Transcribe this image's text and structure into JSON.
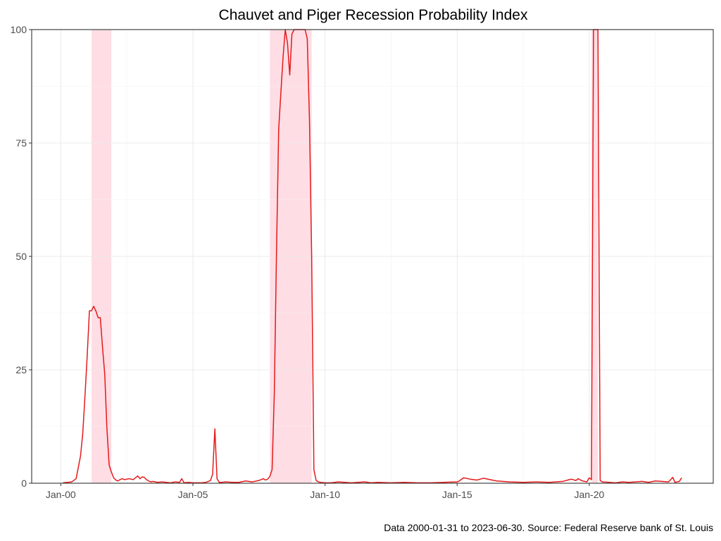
{
  "chart_data": {
    "type": "line",
    "title": "Chauvet and Piger Recession Probability Index",
    "caption": "Data 2000-01-31 to 2023-06-30.  Source: Federal Reserve bank of St. Louis",
    "xlabel": "",
    "ylabel": "",
    "x_range": [
      "2000-01-31",
      "2023-06-30"
    ],
    "ylim": [
      0,
      100
    ],
    "y_ticks": [
      0,
      25,
      50,
      75,
      100
    ],
    "x_ticks": [
      {
        "date": "2000-01-01",
        "label": "Jan-00"
      },
      {
        "date": "2005-01-01",
        "label": "Jan-05"
      },
      {
        "date": "2010-01-01",
        "label": "Jan-10"
      },
      {
        "date": "2015-01-01",
        "label": "Jan-15"
      },
      {
        "date": "2020-01-01",
        "label": "Jan-20"
      }
    ],
    "grid": true,
    "line_color": "#e41a1c",
    "recession_color": "#ffdde4",
    "recession_periods": [
      {
        "start": "2001-03-01",
        "end": "2001-11-30"
      },
      {
        "start": "2007-12-01",
        "end": "2009-06-30"
      },
      {
        "start": "2020-02-01",
        "end": "2020-04-30"
      }
    ],
    "series": [
      {
        "x": [
          "2000-01-31",
          "2000-03-31",
          "2000-05-31",
          "2000-07-31",
          "2000-09-30",
          "2000-10-31",
          "2000-11-30",
          "2000-12-31",
          "2001-01-31",
          "2001-02-28",
          "2001-03-31",
          "2001-04-30",
          "2001-05-31",
          "2001-06-30",
          "2001-07-31",
          "2001-08-31",
          "2001-09-30",
          "2001-10-31",
          "2001-11-30",
          "2001-12-31",
          "2002-01-31",
          "2002-02-28",
          "2002-03-31",
          "2002-04-30",
          "2002-05-31",
          "2002-07-31",
          "2002-09-30",
          "2002-11-30",
          "2002-12-31",
          "2003-01-31",
          "2003-02-28",
          "2003-03-31",
          "2003-04-30",
          "2003-05-31",
          "2003-06-30",
          "2003-08-31",
          "2003-10-31",
          "2003-12-31",
          "2004-02-29",
          "2004-04-30",
          "2004-06-30",
          "2004-07-31",
          "2004-08-31",
          "2004-10-31",
          "2004-12-31",
          "2005-02-28",
          "2005-04-30",
          "2005-06-30",
          "2005-08-31",
          "2005-09-30",
          "2005-10-31",
          "2005-11-30",
          "2005-12-31",
          "2006-01-31",
          "2006-03-31",
          "2006-06-30",
          "2006-09-30",
          "2006-12-31",
          "2007-03-31",
          "2007-06-30",
          "2007-08-31",
          "2007-09-30",
          "2007-10-31",
          "2007-11-30",
          "2007-12-31",
          "2008-01-31",
          "2008-02-29",
          "2008-03-31",
          "2008-04-30",
          "2008-05-31",
          "2008-06-30",
          "2008-07-31",
          "2008-08-31",
          "2008-09-30",
          "2008-10-31",
          "2008-11-30",
          "2008-12-31",
          "2009-01-31",
          "2009-02-28",
          "2009-03-31",
          "2009-04-30",
          "2009-05-31",
          "2009-06-30",
          "2009-07-31",
          "2009-08-31",
          "2009-09-30",
          "2009-10-31",
          "2009-12-31",
          "2010-03-31",
          "2010-06-30",
          "2010-09-30",
          "2010-12-31",
          "2011-03-31",
          "2011-06-30",
          "2011-09-30",
          "2011-12-31",
          "2012-06-30",
          "2012-12-31",
          "2013-06-30",
          "2013-12-31",
          "2014-06-30",
          "2014-12-31",
          "2015-01-31",
          "2015-03-31",
          "2015-06-30",
          "2015-09-30",
          "2015-12-31",
          "2016-03-31",
          "2016-06-30",
          "2016-12-31",
          "2017-06-30",
          "2017-12-31",
          "2018-06-30",
          "2018-12-31",
          "2019-03-31",
          "2019-04-30",
          "2019-06-30",
          "2019-07-31",
          "2019-09-30",
          "2019-10-31",
          "2019-11-30",
          "2019-12-31",
          "2020-01-31",
          "2020-02-29",
          "2020-03-31",
          "2020-04-30",
          "2020-05-31",
          "2020-06-30",
          "2020-09-30",
          "2020-12-31",
          "2021-03-31",
          "2021-06-30",
          "2021-09-30",
          "2021-12-31",
          "2022-03-31",
          "2022-06-30",
          "2022-09-30",
          "2022-12-31",
          "2023-01-31",
          "2023-02-28",
          "2023-03-31",
          "2023-04-30",
          "2023-05-31",
          "2023-06-30"
        ],
        "y": [
          0.1,
          0.2,
          0.3,
          1.0,
          6.0,
          11.0,
          19.0,
          28.0,
          38.0,
          38.0,
          39.0,
          38.0,
          36.5,
          36.5,
          30.0,
          24.0,
          12.0,
          4.0,
          2.5,
          1.2,
          0.7,
          0.5,
          0.8,
          1.0,
          0.8,
          1.0,
          0.8,
          1.6,
          1.0,
          1.4,
          1.3,
          0.8,
          0.5,
          0.3,
          0.4,
          0.2,
          0.3,
          0.2,
          0.1,
          0.3,
          0.2,
          1.0,
          0.1,
          0.2,
          0.1,
          0.1,
          0.1,
          0.2,
          0.6,
          2.0,
          12.0,
          1.0,
          0.2,
          0.2,
          0.3,
          0.2,
          0.2,
          0.5,
          0.3,
          0.6,
          1.0,
          0.7,
          0.9,
          1.5,
          3.0,
          20.0,
          50.0,
          78.0,
          86.0,
          94.0,
          100.0,
          97.0,
          90.0,
          99.0,
          100.0,
          100.0,
          100.0,
          100.0,
          100.0,
          100.0,
          98.0,
          80.0,
          50.0,
          3.0,
          0.6,
          0.3,
          0.2,
          0.1,
          0.1,
          0.3,
          0.2,
          0.1,
          0.2,
          0.3,
          0.1,
          0.2,
          0.1,
          0.2,
          0.1,
          0.1,
          0.2,
          0.3,
          0.5,
          1.2,
          0.9,
          0.7,
          1.1,
          0.8,
          0.5,
          0.3,
          0.2,
          0.3,
          0.2,
          0.4,
          0.8,
          0.9,
          0.6,
          1.0,
          0.5,
          0.4,
          0.3,
          1.2,
          0.8,
          100.0,
          100.0,
          100.0,
          0.6,
          0.3,
          0.2,
          0.1,
          0.3,
          0.2,
          0.3,
          0.4,
          0.2,
          0.5,
          0.4,
          0.3,
          0.8,
          1.3,
          0.2,
          0.3,
          0.4,
          1.2
        ]
      }
    ]
  }
}
